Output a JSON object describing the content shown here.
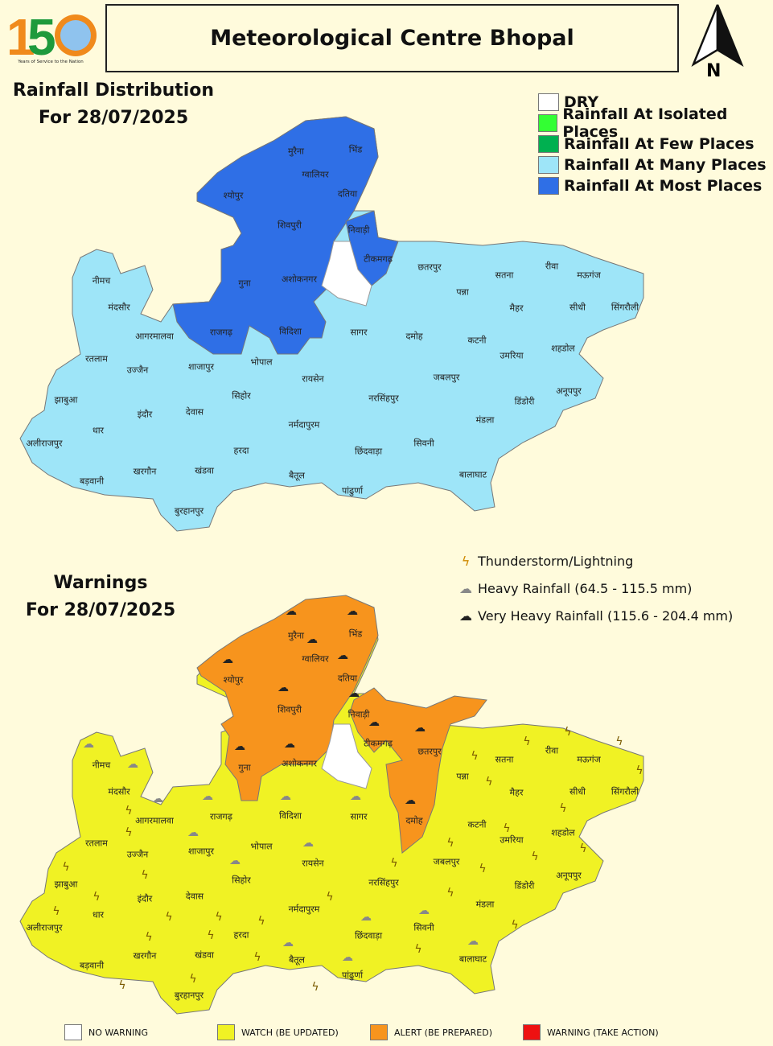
{
  "header": {
    "logo_text": "150 Years of Service to the Nation",
    "title": "Meteorological Centre Bhopal",
    "north_label": "N"
  },
  "rainfall_map": {
    "title_line1": "Rainfall Distribution",
    "title_line2": "For 28/07/2025",
    "legend": [
      {
        "label": "DRY",
        "color": "#ffffff"
      },
      {
        "label": "Rainfall At Isolated Places",
        "color": "#33ff33"
      },
      {
        "label": "Rainfall At Few Places",
        "color": "#00b050"
      },
      {
        "label": "Rainfall At Many Places",
        "color": "#9ee5f8"
      },
      {
        "label": "Rainfall At Most Places",
        "color": "#2f6fe6"
      }
    ]
  },
  "warning_map": {
    "title_line1": "Warnings",
    "title_line2": "For 28/07/2025",
    "legend": [
      {
        "label": "Thunderstorm/Lightning",
        "icon": "lightning-icon"
      },
      {
        "label": "Heavy Rainfall (64.5 - 115.5 mm)",
        "icon": "rain-cloud-grey-icon"
      },
      {
        "label": "Very Heavy Rainfall (115.6 - 204.4 mm)",
        "icon": "rain-cloud-dark-icon"
      }
    ],
    "levels": [
      {
        "label": "NO WARNING",
        "color": "#ffffff"
      },
      {
        "label": "WATCH (BE UPDATED)",
        "color": "#f0f224"
      },
      {
        "label": "ALERT (BE PREPARED)",
        "color": "#f7941d"
      },
      {
        "label": "WARNING (TAKE ACTION)",
        "color": "#ee1111"
      }
    ]
  },
  "districts": [
    "मुरैना",
    "भिंड",
    "ग्वालियर",
    "दतिया",
    "श्योपुर",
    "शिवपुरी",
    "निवाड़ी",
    "टीकमगढ़",
    "छतरपुर",
    "पन्ना",
    "सतना",
    "रीवा",
    "मऊगंज",
    "सीधी",
    "सिंगरौली",
    "मैहर",
    "नीमच",
    "मंदसौर",
    "गुना",
    "अशोकनगर",
    "राजगढ़",
    "विदिशा",
    "सागर",
    "दमोह",
    "कटनी",
    "उमरिया",
    "शहडोल",
    "आगरमालवा",
    "रतलाम",
    "उज्जैन",
    "शाजापुर",
    "भोपाल",
    "रायसेन",
    "जबलपुर",
    "अनूपपुर",
    "झाबुआ",
    "धार",
    "इंदौर",
    "देवास",
    "सिहोर",
    "नरसिंहपुर",
    "डिंडोरी",
    "अलीराजपुर",
    "नर्मदापुरम",
    "मंडला",
    "हरदा",
    "छिंदवाड़ा",
    "सिवनी",
    "खरगौन",
    "खंडवा",
    "बैतूल",
    "बालाघाट",
    "बड़वानी",
    "पांढुर्णा",
    "बुरहानपुर"
  ]
}
